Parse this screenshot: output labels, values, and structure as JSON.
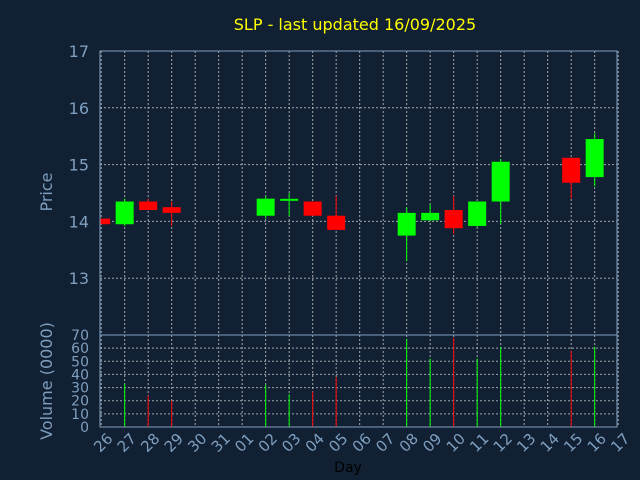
{
  "chart_data": {
    "type": "candlestick",
    "title": "SLP - last updated 16/09/2025",
    "xlabel": "Day",
    "price_ylabel": "Price",
    "volume_ylabel": "Volume (0000)",
    "grid": true,
    "colors": {
      "background": "#112033",
      "axis_text": "#7f9fbf",
      "title": "#ffff00",
      "grid": "#c8c8c8",
      "up": "#00ff00",
      "down": "#ff0000"
    },
    "price_ylim": [
      12.0,
      17.0
    ],
    "price_yticks": [
      13,
      14,
      15,
      16,
      17
    ],
    "volume_ylim": [
      0,
      70
    ],
    "volume_yticks": [
      0,
      10,
      20,
      30,
      40,
      50,
      60,
      70
    ],
    "x_tick_labels": [
      "26",
      "27",
      "28",
      "29",
      "30",
      "31",
      "01",
      "02",
      "03",
      "04",
      "05",
      "06",
      "07",
      "08",
      "09",
      "10",
      "11",
      "12",
      "13",
      "14",
      "15",
      "16",
      "17"
    ],
    "candles": [
      {
        "x": 0,
        "open": 14.05,
        "high": 14.05,
        "low": 13.95,
        "close": 13.95,
        "volume": 0
      },
      {
        "x": 1,
        "open": 13.95,
        "high": 14.4,
        "low": 13.92,
        "close": 14.35,
        "volume": 33
      },
      {
        "x": 2,
        "open": 14.35,
        "high": 14.4,
        "low": 14.2,
        "close": 14.2,
        "volume": 24
      },
      {
        "x": 3,
        "open": 14.25,
        "high": 14.35,
        "low": 13.92,
        "close": 14.15,
        "volume": 20
      },
      {
        "x": 7,
        "open": 14.1,
        "high": 14.45,
        "low": 14.05,
        "close": 14.4,
        "volume": 32
      },
      {
        "x": 8,
        "open": 14.35,
        "high": 14.5,
        "low": 14.1,
        "close": 14.38,
        "volume": 25
      },
      {
        "x": 9,
        "open": 14.35,
        "high": 14.35,
        "low": 14.1,
        "close": 14.1,
        "volume": 27
      },
      {
        "x": 10,
        "open": 14.1,
        "high": 14.45,
        "low": 13.85,
        "close": 13.85,
        "volume": 38
      },
      {
        "x": 13,
        "open": 13.75,
        "high": 14.25,
        "low": 13.3,
        "close": 14.15,
        "volume": 67
      },
      {
        "x": 14,
        "open": 14.02,
        "high": 14.3,
        "low": 14.0,
        "close": 14.15,
        "volume": 52
      },
      {
        "x": 15,
        "open": 14.2,
        "high": 14.45,
        "low": 13.78,
        "close": 13.88,
        "volume": 68
      },
      {
        "x": 16,
        "open": 13.92,
        "high": 14.35,
        "low": 13.9,
        "close": 14.35,
        "volume": 52
      },
      {
        "x": 17,
        "open": 14.35,
        "high": 15.1,
        "low": 13.95,
        "close": 15.05,
        "volume": 61
      },
      {
        "x": 20,
        "open": 15.12,
        "high": 15.12,
        "low": 14.4,
        "close": 14.68,
        "volume": 58
      },
      {
        "x": 21,
        "open": 14.78,
        "high": 15.55,
        "low": 14.62,
        "close": 15.45,
        "volume": 61
      }
    ]
  }
}
